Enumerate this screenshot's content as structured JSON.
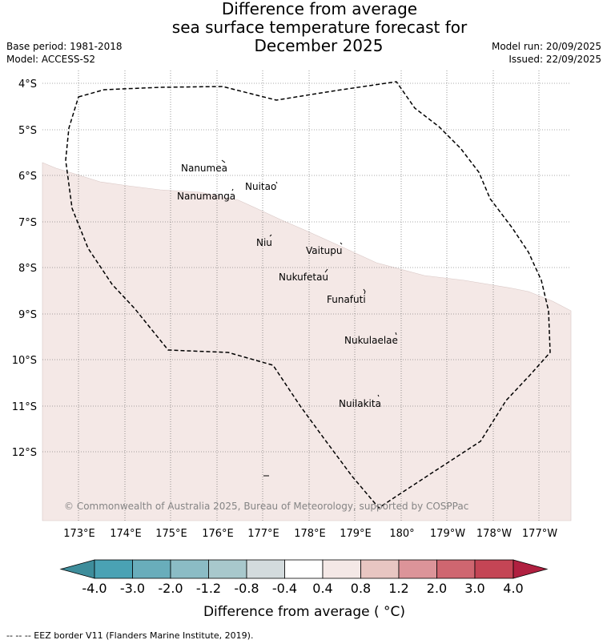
{
  "title": {
    "line1": "Difference from average",
    "line2": "sea surface temperature forecast for",
    "line3": "December 2025"
  },
  "info": {
    "base_period": "Base period: 1981-2018",
    "model": "Model: ACCESS-S2",
    "model_run": "Model run: 20/09/2025",
    "issued": "Issued: 22/09/2025"
  },
  "map": {
    "lat_labels": [
      "4°S",
      "5°S",
      "6°S",
      "7°S",
      "8°S",
      "9°S",
      "10°S",
      "11°S",
      "12°S"
    ],
    "lon_labels": [
      "173°E",
      "174°E",
      "175°E",
      "176°E",
      "177°E",
      "178°E",
      "179°E",
      "180°",
      "179°W",
      "178°W",
      "177°W"
    ],
    "islands": [
      "Nanumea",
      "Nuitao",
      "Nanumanga",
      "Niu",
      "Vaitupu",
      "Nukufetau",
      "Funafuti",
      "Nukulaelae",
      "Nuilakita"
    ],
    "anomaly_fill_color": "#f4e8e6",
    "copyright": "© Commonwealth of Australia 2025, Bureau of Meteorology, supported by COSPPac"
  },
  "colorbar": {
    "ticks": [
      "-4.0",
      "-3.0",
      "-2.0",
      "-1.2",
      "-0.8",
      "-0.4",
      "0.4",
      "0.8",
      "1.2",
      "2.0",
      "3.0",
      "4.0"
    ],
    "colors": [
      "#3e8d9b",
      "#4aa2b4",
      "#69adbb",
      "#8bbcc5",
      "#a8c8cc",
      "#d3dbdd",
      "#ffffff",
      "#f4e8e6",
      "#e8c6c2",
      "#dc9499",
      "#cf6670",
      "#c44555",
      "#b02040"
    ],
    "label": "Difference from average ( °C)"
  },
  "footer": {
    "legend": "-- -- -- EEZ border V11 (Flanders Marine Institute, 2019)."
  }
}
